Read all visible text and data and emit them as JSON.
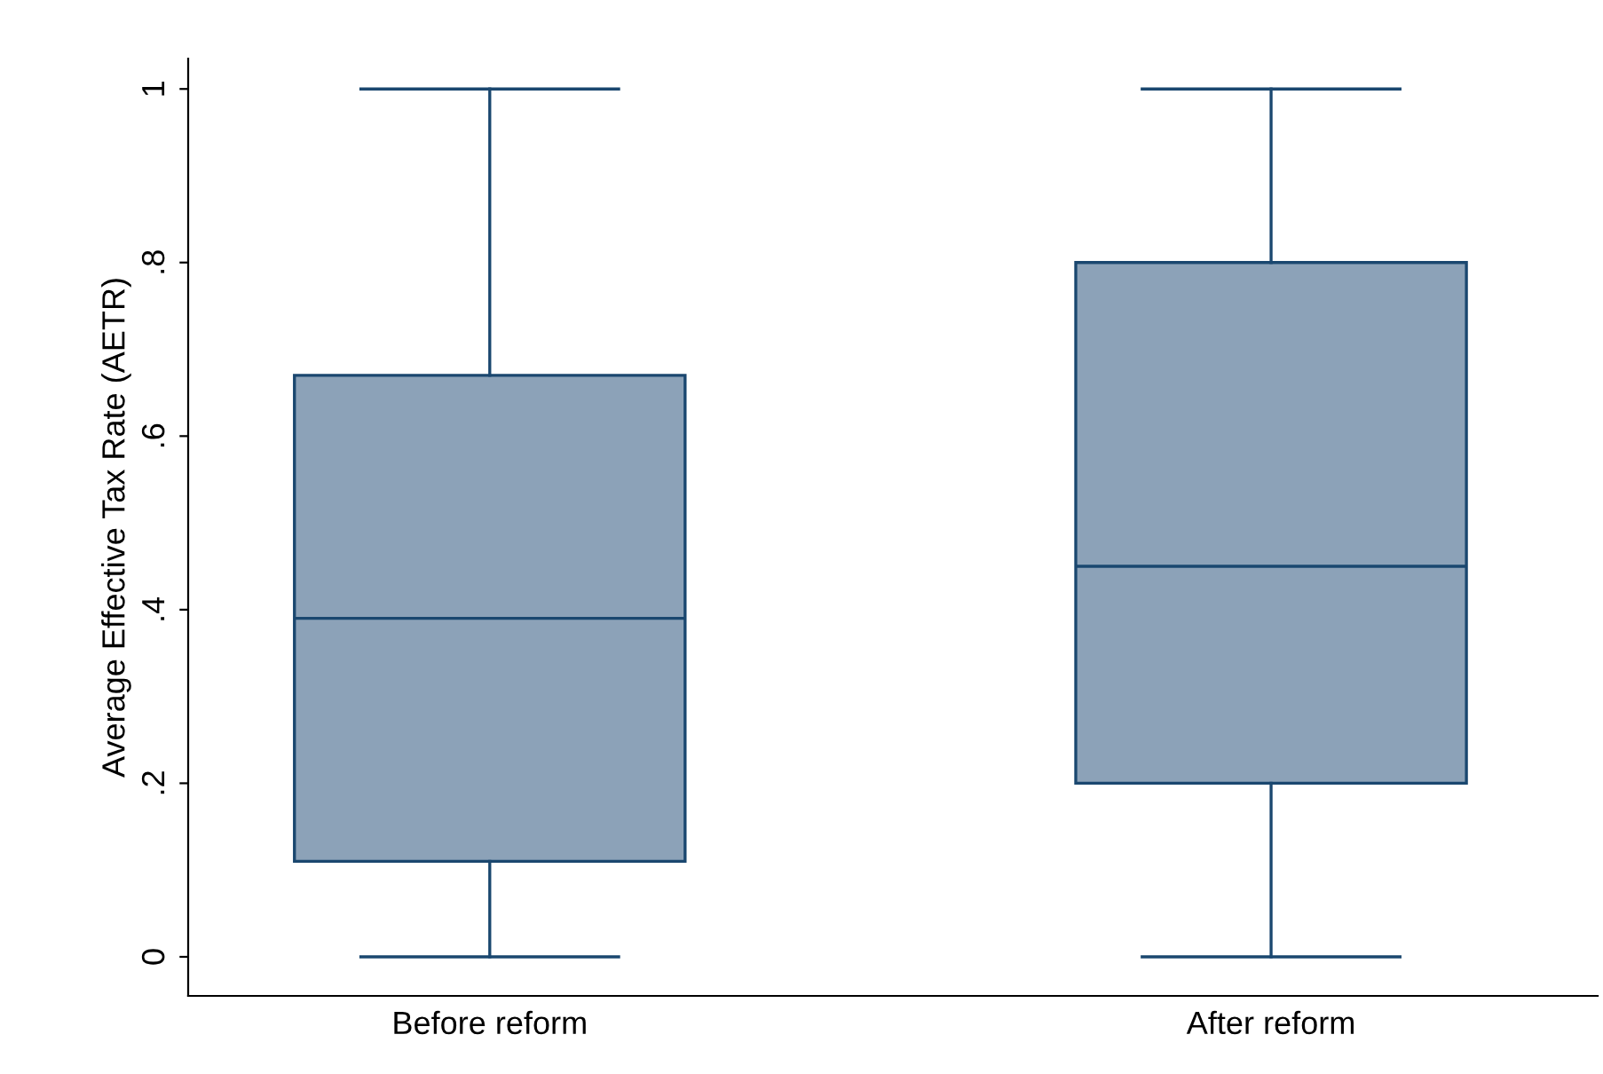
{
  "chart_data": {
    "type": "box",
    "ylabel": "Average Effective Tax Rate (AETR)",
    "categories": [
      "Before reform",
      "After reform"
    ],
    "boxes": [
      {
        "low": 0,
        "q1": 0.11,
        "median": 0.39,
        "q3": 0.67,
        "high": 1
      },
      {
        "low": 0,
        "q1": 0.2,
        "median": 0.45,
        "q3": 0.8,
        "high": 1
      }
    ],
    "color": "#8ca2b8",
    "ylim": [
      -0.045,
      1.035
    ],
    "yticks": [
      {
        "value": 0,
        "label": "0"
      },
      {
        "value": 0.2,
        "label": ".2"
      },
      {
        "value": 0.4,
        "label": ".4"
      },
      {
        "value": 0.6,
        "label": ".6"
      },
      {
        "value": 0.8,
        "label": ".8"
      },
      {
        "value": 1,
        "label": "1"
      }
    ],
    "grid": false
  }
}
